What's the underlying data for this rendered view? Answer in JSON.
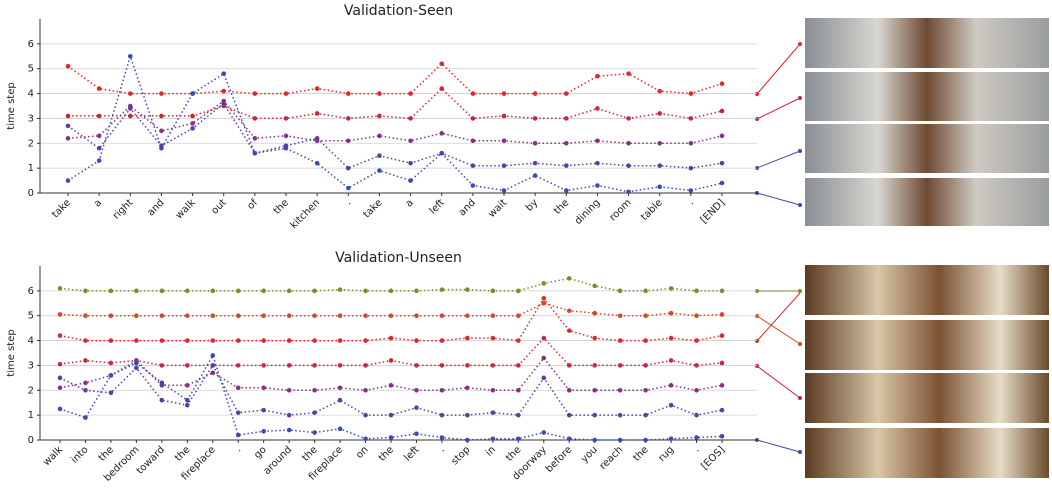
{
  "chart_data": [
    {
      "type": "line",
      "title": "Validation-Seen",
      "y_label": "time step",
      "categories": [
        "take",
        "a",
        "right",
        "and",
        "walk",
        "out",
        "of",
        "the",
        "kitchen",
        ".",
        "take",
        "a",
        "left",
        "and",
        "wait",
        "by",
        "the",
        "dining",
        "room",
        "table",
        ".",
        "[END]"
      ],
      "ylim": [
        0,
        7
      ],
      "yticks": [
        0,
        1,
        2,
        3,
        4,
        5,
        6
      ],
      "grid": true,
      "series": [
        {
          "color": "#e3262b",
          "values": [
            5.1,
            4.2,
            4.0,
            4.0,
            4.0,
            4.1,
            4.0,
            4.0,
            4.2,
            4.0,
            4.0,
            4.0,
            5.2,
            4.0,
            4.0,
            4.0,
            4.0,
            4.7,
            4.8,
            4.1,
            4.0,
            4.4
          ]
        },
        {
          "color": "#c8283c",
          "values": [
            3.1,
            3.1,
            3.1,
            3.1,
            3.1,
            3.5,
            3.0,
            3.0,
            3.2,
            3.0,
            3.1,
            3.0,
            4.2,
            3.0,
            3.1,
            3.0,
            3.0,
            3.4,
            3.0,
            3.2,
            3.0,
            3.3
          ]
        },
        {
          "color": "#8a2f86",
          "values": [
            2.2,
            2.3,
            3.5,
            2.5,
            2.8,
            3.7,
            2.2,
            2.3,
            2.1,
            2.1,
            2.3,
            2.1,
            2.4,
            2.1,
            2.1,
            2.0,
            2.0,
            2.1,
            2.0,
            2.0,
            2.0,
            2.3
          ]
        },
        {
          "color": "#5b3e9e",
          "values": [
            2.7,
            1.8,
            3.4,
            1.9,
            2.6,
            3.6,
            1.6,
            1.9,
            2.2,
            1.0,
            1.5,
            1.2,
            1.6,
            1.1,
            1.1,
            1.2,
            1.1,
            1.2,
            1.1,
            1.1,
            1.0,
            1.2
          ]
        },
        {
          "color": "#3a4bb5",
          "values": [
            0.5,
            1.3,
            5.5,
            1.8,
            4.0,
            4.8,
            1.6,
            1.8,
            1.2,
            0.2,
            0.9,
            0.5,
            1.6,
            0.3,
            0.1,
            0.7,
            0.1,
            0.3,
            0.05,
            0.25,
            0.1,
            0.4
          ]
        }
      ]
    },
    {
      "type": "line",
      "title": "Validation-Unseen",
      "y_label": "time step",
      "categories": [
        "walk",
        "into",
        "the",
        "bedroom",
        "toward",
        "the",
        "fireplace",
        ".",
        "go",
        "around",
        "the",
        "fireplace",
        "on",
        "the",
        "left",
        ".",
        "stop",
        "in",
        "the",
        "doorway",
        "before",
        "you",
        "reach",
        "the",
        "rug",
        ".",
        "[EOS]"
      ],
      "ylim": [
        0,
        7
      ],
      "yticks": [
        0,
        1,
        2,
        3,
        4,
        5,
        6
      ],
      "grid": true,
      "series": [
        {
          "color": "#7f8a2a",
          "values": [
            6.1,
            6.0,
            6.0,
            6.0,
            6.0,
            6.0,
            6.0,
            6.0,
            6.0,
            6.0,
            6.0,
            6.05,
            6.0,
            6.0,
            6.0,
            6.05,
            6.05,
            6.0,
            6.0,
            6.3,
            6.5,
            6.2,
            6.0,
            6.0,
            6.1,
            6.0,
            6.0
          ]
        },
        {
          "color": "#d8462a",
          "values": [
            5.05,
            5.0,
            5.0,
            5.0,
            5.0,
            5.0,
            5.0,
            5.0,
            5.0,
            5.0,
            5.0,
            5.0,
            5.0,
            5.0,
            5.0,
            5.0,
            5.0,
            5.0,
            5.0,
            5.5,
            5.2,
            5.1,
            5.0,
            5.0,
            5.1,
            5.0,
            5.05
          ]
        },
        {
          "color": "#e3262b",
          "values": [
            4.2,
            4.0,
            4.0,
            4.0,
            4.0,
            4.0,
            4.0,
            4.0,
            4.0,
            4.0,
            4.0,
            4.0,
            4.0,
            4.1,
            4.0,
            4.0,
            4.1,
            4.1,
            4.0,
            5.7,
            4.4,
            4.1,
            4.0,
            4.0,
            4.1,
            4.0,
            4.2
          ]
        },
        {
          "color": "#c8283c",
          "values": [
            3.05,
            3.2,
            3.1,
            3.2,
            3.0,
            3.0,
            3.0,
            3.0,
            3.0,
            3.0,
            3.0,
            3.0,
            3.0,
            3.2,
            3.0,
            3.0,
            3.0,
            3.0,
            3.0,
            4.1,
            3.0,
            3.0,
            3.0,
            3.0,
            3.2,
            3.0,
            3.1
          ]
        },
        {
          "color": "#8a2f86",
          "values": [
            2.1,
            2.3,
            2.6,
            3.2,
            2.2,
            2.2,
            2.7,
            2.1,
            2.1,
            2.0,
            2.0,
            2.1,
            2.0,
            2.2,
            2.0,
            2.0,
            2.1,
            2.0,
            2.0,
            3.3,
            2.0,
            2.0,
            2.0,
            2.0,
            2.2,
            2.0,
            2.2
          ]
        },
        {
          "color": "#5b3e9e",
          "values": [
            2.5,
            2.0,
            1.9,
            2.9,
            1.6,
            1.4,
            3.0,
            1.1,
            1.2,
            1.0,
            1.1,
            1.6,
            1.0,
            1.0,
            1.3,
            1.0,
            1.0,
            1.1,
            1.0,
            2.5,
            1.0,
            1.0,
            1.0,
            1.0,
            1.4,
            1.0,
            1.2
          ]
        },
        {
          "color": "#3a4bb5",
          "values": [
            1.25,
            0.9,
            2.6,
            3.1,
            2.3,
            1.6,
            3.4,
            0.2,
            0.35,
            0.4,
            0.3,
            0.45,
            0.05,
            0.1,
            0.25,
            0.1,
            0.0,
            0.05,
            0.05,
            0.3,
            0.05,
            0.0,
            0.0,
            0.0,
            0.05,
            0.1,
            0.15
          ]
        }
      ]
    }
  ]
}
